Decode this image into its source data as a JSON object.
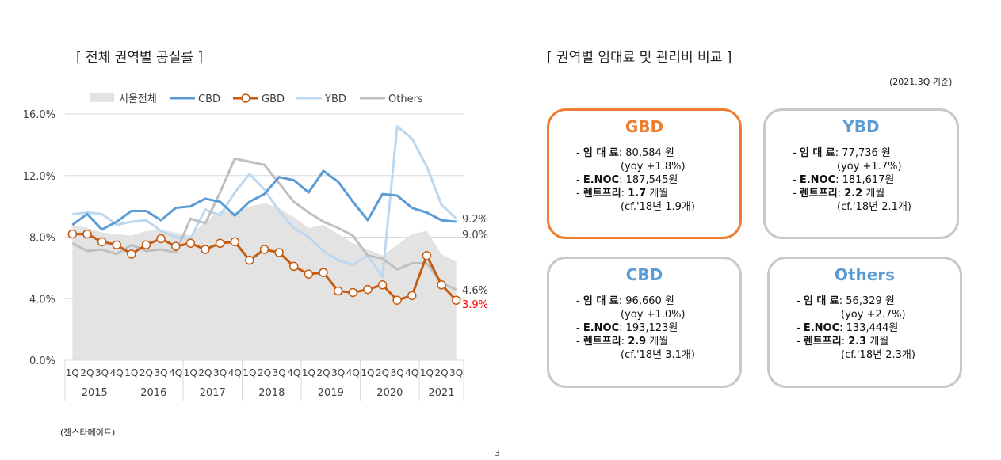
{
  "left_title": "[ 전체 권역별 공실률 ]",
  "right_title": "[ 권역별 임대료 및 관리비 비교 ]",
  "as_of": "(2021.3Q 기준)",
  "source": "(젠스타메이트)",
  "page_number": "3",
  "colors": {
    "seoul": "#e3e3e3",
    "cbd": "#5b9bd5",
    "gbd": "#c55a11",
    "ybd": "#bdd7ee",
    "others": "#bfbfbf",
    "gbd_border": "#ed7d31",
    "card_border": "#c8c8c8",
    "red": "#ff0000"
  },
  "chart_data": {
    "type": "line",
    "ylim": [
      0,
      16
    ],
    "y_ticks": [
      "0.0%",
      "4.0%",
      "8.0%",
      "12.0%",
      "16.0%"
    ],
    "quarter_labels": [
      "1Q",
      "2Q",
      "3Q",
      "4Q",
      "1Q",
      "2Q",
      "3Q",
      "4Q",
      "1Q",
      "2Q",
      "3Q",
      "4Q",
      "1Q",
      "2Q",
      "3Q",
      "4Q",
      "1Q",
      "2Q",
      "3Q",
      "4Q",
      "1Q",
      "2Q",
      "3Q",
      "4Q",
      "1Q",
      "2Q",
      "3Q"
    ],
    "year_labels": [
      "2015",
      "2016",
      "2017",
      "2018",
      "2019",
      "2020",
      "2021"
    ],
    "legend": [
      "서울전체",
      "CBD",
      "GBD",
      "YBD",
      "Others"
    ],
    "series": [
      {
        "name": "서울전체",
        "kind": "area",
        "values": [
          8.8,
          8.6,
          8.3,
          8.2,
          8.1,
          8.4,
          8.5,
          8.3,
          8.1,
          9.0,
          9.7,
          9.6,
          10.0,
          10.2,
          9.9,
          9.3,
          8.6,
          8.8,
          8.2,
          7.6,
          7.2,
          6.8,
          7.5,
          8.2,
          8.4,
          6.9,
          6.4
        ]
      },
      {
        "name": "CBD",
        "kind": "line",
        "values": [
          8.8,
          9.5,
          8.5,
          9.0,
          9.7,
          9.7,
          9.1,
          9.9,
          10.0,
          10.5,
          10.3,
          9.4,
          10.3,
          10.8,
          11.9,
          11.7,
          10.9,
          12.3,
          11.6,
          10.3,
          9.1,
          10.8,
          10.7,
          9.9,
          9.6,
          9.1,
          9.0
        ]
      },
      {
        "name": "GBD",
        "kind": "line",
        "values": [
          8.2,
          8.2,
          7.7,
          7.5,
          6.9,
          7.5,
          7.9,
          7.4,
          7.6,
          7.2,
          7.6,
          7.7,
          6.5,
          7.2,
          7.0,
          6.1,
          5.6,
          5.7,
          4.5,
          4.4,
          4.6,
          4.9,
          3.9,
          4.2,
          6.8,
          4.9,
          3.9
        ]
      },
      {
        "name": "YBD",
        "kind": "line",
        "values": [
          9.5,
          9.6,
          9.5,
          8.8,
          9.0,
          9.1,
          8.4,
          8.0,
          7.9,
          9.8,
          9.4,
          10.9,
          12.1,
          11.1,
          9.7,
          8.6,
          8.0,
          7.1,
          6.5,
          6.2,
          6.8,
          5.4,
          15.2,
          14.4,
          12.6,
          10.1,
          9.2
        ]
      },
      {
        "name": "Others",
        "kind": "line",
        "values": [
          7.6,
          7.1,
          7.2,
          6.9,
          7.5,
          7.1,
          7.2,
          7.0,
          9.2,
          8.9,
          10.9,
          13.1,
          12.9,
          12.7,
          11.5,
          10.3,
          9.6,
          9.0,
          8.6,
          8.1,
          6.8,
          6.6,
          5.9,
          6.3,
          6.3,
          5.0,
          4.6
        ]
      }
    ],
    "end_labels": [
      {
        "text": "9.2%",
        "value": 9.2,
        "color": "#404040"
      },
      {
        "text": "9.0%",
        "value": 9.0,
        "color": "#404040"
      },
      {
        "text": "4.6%",
        "value": 4.6,
        "color": "#404040"
      },
      {
        "text": "3.9%",
        "value": 3.9,
        "color": "#ff0000"
      }
    ]
  },
  "cards": [
    {
      "id": "gbd",
      "title": "GBD",
      "title_color": "#ed7d31",
      "border": "#ed7d31",
      "rent_label": "임 대 료",
      "rent": ": 80,584 원",
      "rent_yoy": "(yoy +1.8%)",
      "enoc_label": "E.NOC",
      "enoc": ": 187,545원",
      "rf_label": "렌트프리",
      "rf_value": "1.7",
      "rf_unit": " 개월",
      "rf_cf": "(cf.'18년 1.9개)"
    },
    {
      "id": "ybd",
      "title": "YBD",
      "title_color": "#5b9bd5",
      "border": "#c8c8c8",
      "rent_label": "임 대 료",
      "rent": ": 77,736 원",
      "rent_yoy": "(yoy +1.7%)",
      "enoc_label": "E.NOC",
      "enoc": ": 181,617원",
      "rf_label": "렌트프리",
      "rf_value": "2.2",
      "rf_unit": " 개월",
      "rf_cf": "(cf.'18년 2.1개)"
    },
    {
      "id": "cbd",
      "title": "CBD",
      "title_color": "#5b9bd5",
      "border": "#c8c8c8",
      "rent_label": "임 대 료",
      "rent": ": 96,660 원",
      "rent_yoy": "(yoy +1.0%)",
      "enoc_label": "E.NOC",
      "enoc": ": 193,123원",
      "rf_label": "렌트프리",
      "rf_value": "2.9",
      "rf_unit": " 개월",
      "rf_cf": "(cf.'18년 3.1개)"
    },
    {
      "id": "others",
      "title": "Others",
      "title_color": "#5b9bd5",
      "border": "#c8c8c8",
      "rent_label": "임 대 료",
      "rent": ": 56,329 원",
      "rent_yoy": "(yoy +2.7%)",
      "enoc_label": "E.NOC",
      "enoc": ": 133,444원",
      "rf_label": "렌트프리",
      "rf_value": "2.3",
      "rf_unit": " 개월",
      "rf_cf": "(cf.'18년 2.3개)"
    }
  ]
}
